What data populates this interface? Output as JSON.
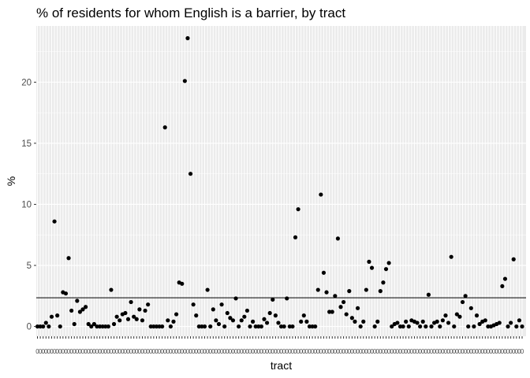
{
  "chart_data": {
    "type": "scatter",
    "title": "% of residents for whom English is a barrier, by tract",
    "xlabel": "tract",
    "ylabel": "%",
    "x_tick_label": "0",
    "ylim": [
      -0.8,
      24.6
    ],
    "yticks": [
      0,
      5,
      10,
      15,
      20
    ],
    "grid": true,
    "reference_line": 2.35,
    "values": [
      0,
      0,
      0,
      0.3,
      0,
      0.8,
      8.6,
      0.9,
      0,
      2.8,
      2.7,
      5.6,
      1.3,
      0.2,
      2.1,
      1.2,
      1.4,
      1.6,
      0.2,
      0,
      0.2,
      0,
      0,
      0,
      0,
      0,
      3.0,
      0.2,
      0.8,
      0.5,
      1.0,
      1.1,
      0.6,
      2.0,
      0.8,
      0.6,
      1.4,
      0.5,
      1.3,
      1.8,
      0,
      0,
      0,
      0,
      0,
      16.3,
      0.5,
      0,
      0.4,
      1.0,
      3.6,
      3.5,
      20.1,
      23.6,
      12.5,
      1.8,
      0.9,
      0,
      0,
      0,
      3.0,
      0,
      1.4,
      0.5,
      0.2,
      1.8,
      0,
      1.1,
      0.7,
      0.5,
      2.3,
      0,
      0.5,
      0.8,
      1.3,
      0,
      0.4,
      0,
      0,
      0,
      0.6,
      0.3,
      1.1,
      2.2,
      0.9,
      0.3,
      0,
      0,
      2.3,
      0,
      0,
      7.3,
      9.6,
      0.4,
      0.9,
      0.4,
      0,
      0,
      0,
      3.0,
      10.8,
      4.4,
      2.8,
      1.2,
      1.2,
      2.5,
      7.2,
      1.6,
      2.0,
      1.0,
      2.9,
      0.7,
      0.4,
      1.5,
      0,
      0.4,
      3.0,
      5.3,
      4.8,
      0,
      0.4,
      2.9,
      3.6,
      4.7,
      5.2,
      0,
      0.2,
      0.3,
      0,
      0,
      0.4,
      0,
      0.5,
      0.4,
      0.3,
      0,
      0.4,
      0,
      2.6,
      0,
      0.3,
      0.4,
      0,
      0.5,
      0.9,
      0.3,
      5.7,
      0,
      1.0,
      0.8,
      2.0,
      2.5,
      0,
      1.5,
      0,
      0.9,
      0.2,
      0.4,
      0.5,
      0,
      0,
      0.1,
      0.2,
      0.3,
      3.3,
      3.9,
      0,
      0.3,
      5.5,
      0,
      0.5,
      0
    ]
  },
  "colors": {
    "panel_background": "#ebebeb",
    "grid_major": "#ffffff",
    "points": "#000000",
    "reference_line": "#000000"
  }
}
